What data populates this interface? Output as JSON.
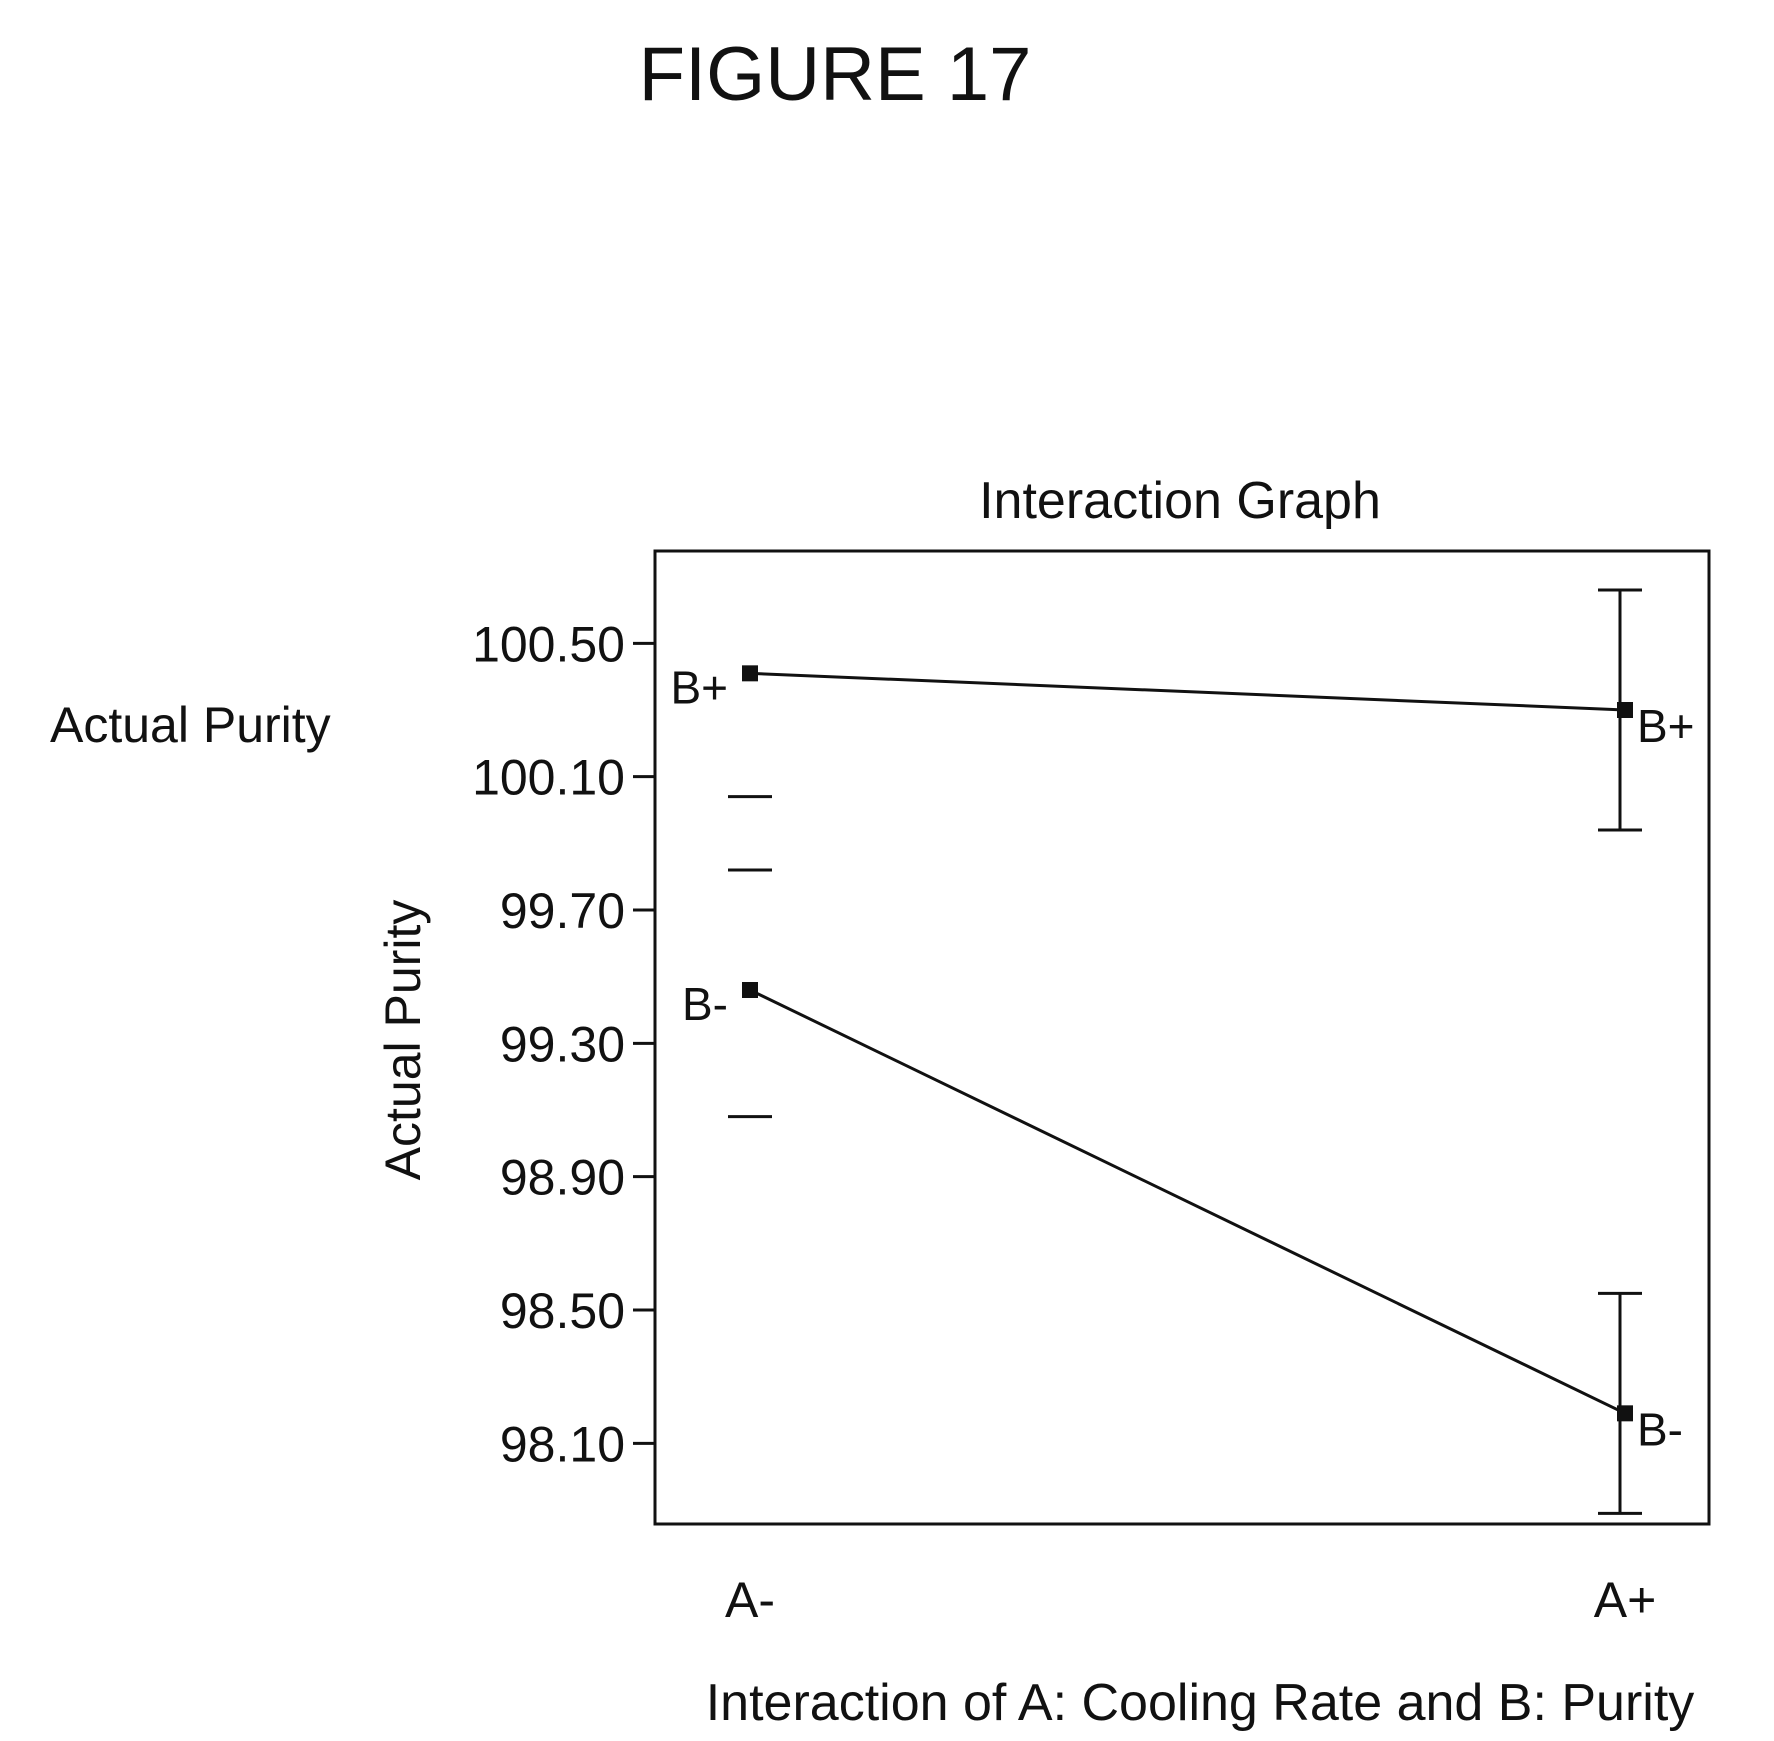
{
  "chart_data": {
    "type": "line",
    "figure_label": "FIGURE 17",
    "title": "Interaction Graph",
    "side_label": "Actual Purity",
    "ylabel": "Actual Purity",
    "xlabel": "Interaction of A: Cooling Rate and B: Purity",
    "categories": [
      "A-",
      "A+"
    ],
    "ylim": [
      97.87,
      100.75
    ],
    "yticks": [
      98.1,
      98.5,
      98.9,
      99.3,
      99.7,
      100.1,
      100.5
    ],
    "ytick_labels": [
      "98.10",
      "98.50",
      "98.90",
      "99.30",
      "99.70",
      "100.10",
      "100.50"
    ],
    "series": [
      {
        "name": "B+",
        "values": [
          100.41,
          100.3
        ],
        "error_bars": [
          null,
          {
            "low": 99.94,
            "high": 100.66
          }
        ]
      },
      {
        "name": "B-",
        "values": [
          99.46,
          98.19
        ],
        "error_bars": [
          null,
          {
            "low": 97.89,
            "high": 98.55
          }
        ]
      }
    ],
    "lsd_marks_at_first_category": [
      100.04,
      99.82,
      99.08
    ]
  }
}
